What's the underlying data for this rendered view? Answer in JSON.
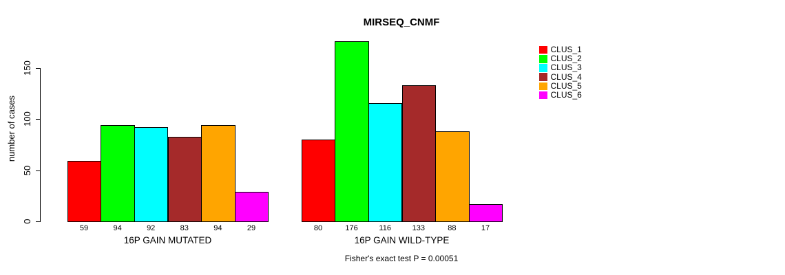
{
  "chart_data": {
    "type": "bar",
    "title": "MIRSEQ_CNMF",
    "xlabel": "",
    "ylabel": "number of cases",
    "categories": [
      "16P GAIN MUTATED",
      "16P GAIN WILD-TYPE"
    ],
    "series": [
      {
        "name": "CLUS_1",
        "color": "#FF0000",
        "values": [
          59,
          80
        ]
      },
      {
        "name": "CLUS_2",
        "color": "#00FF00",
        "values": [
          94,
          176
        ]
      },
      {
        "name": "CLUS_3",
        "color": "#00FFFF",
        "values": [
          92,
          116
        ]
      },
      {
        "name": "CLUS_4",
        "color": "#A52A2A",
        "values": [
          83,
          133
        ]
      },
      {
        "name": "CLUS_5",
        "color": "#FFA500",
        "values": [
          94,
          88
        ]
      },
      {
        "name": "CLUS_6",
        "color": "#FF00FF",
        "values": [
          29,
          17
        ]
      }
    ],
    "yticks": [
      0,
      50,
      100,
      150
    ],
    "ylim": [
      0,
      180
    ],
    "grid": false,
    "bar_value_labels": true,
    "legend_position": "right",
    "annotation": "Fisher's exact test P = 0.00051",
    "bar_border_color": "#000000",
    "background_color": "#FFFFFF"
  }
}
